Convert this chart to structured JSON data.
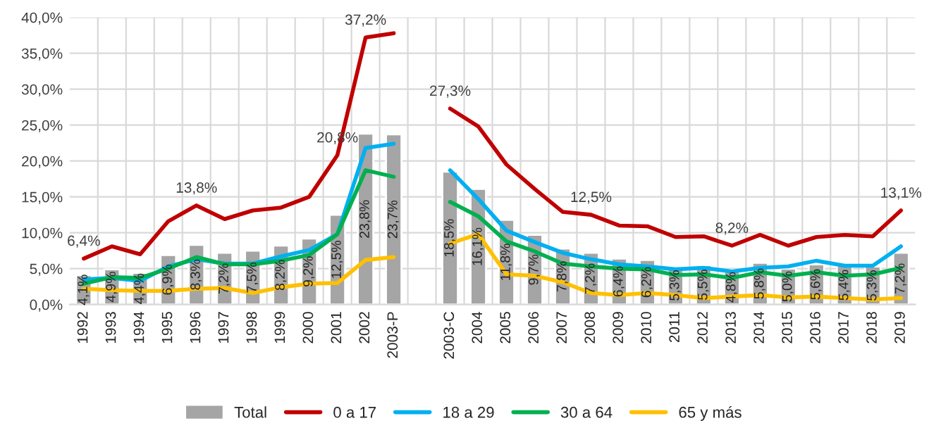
{
  "chart_data": {
    "type": "bar",
    "categories": [
      "1992",
      "1993",
      "1994",
      "1995",
      "1996",
      "1997",
      "1998",
      "1999",
      "2000",
      "2001",
      "2002",
      "2003-P",
      null,
      "2003-C",
      "2004",
      "2005",
      "2006",
      "2007",
      "2008",
      "2009",
      "2010",
      "2011",
      "2012",
      "2013",
      "2014",
      "2015",
      "2016",
      "2017",
      "2018",
      "2019"
    ],
    "series": [
      {
        "name": "Total",
        "color": "#a5a5a5",
        "values": [
          4.1,
          4.9,
          4.4,
          6.9,
          8.3,
          7.2,
          7.5,
          8.2,
          9.2,
          12.5,
          23.8,
          23.7,
          null,
          18.5,
          16.1,
          11.8,
          9.7,
          7.8,
          7.2,
          6.4,
          6.2,
          5.3,
          5.5,
          4.8,
          5.8,
          5.0,
          5.6,
          5.4,
          5.3,
          7.2
        ],
        "value_labels": [
          "4,1%",
          "4,9%",
          "4,4%",
          "6,9%",
          "8,3%",
          "7,2%",
          "7,5%",
          "8,2%",
          "9,2%",
          "12,5%",
          "23,8%",
          "23,7%",
          null,
          "18,5%",
          "16,1%",
          "11,8%",
          "9,7%",
          "7,8%",
          "7,2%",
          "6,4%",
          "6,2%",
          "5,3%",
          "5,5%",
          "4,8%",
          "5,8%",
          "5,0%",
          "5,6%",
          "5,4%",
          "5,3%",
          "7,2%"
        ]
      },
      {
        "name": "0 a 17",
        "type": "line",
        "color": "#c00000",
        "values": [
          6.4,
          8.1,
          7.0,
          11.6,
          13.8,
          11.9,
          13.1,
          13.5,
          15.0,
          20.8,
          37.2,
          37.8,
          null,
          27.3,
          24.8,
          19.5,
          16.1,
          12.9,
          12.5,
          11.0,
          10.9,
          9.4,
          9.5,
          8.2,
          9.7,
          8.2,
          9.4,
          9.7,
          9.5,
          13.1
        ],
        "value_labels": [
          "6,4%",
          null,
          null,
          null,
          "13,8%",
          null,
          null,
          null,
          null,
          "20,8%",
          "37,2%",
          null,
          null,
          "27,3%",
          null,
          null,
          null,
          null,
          "12,5%",
          null,
          null,
          null,
          null,
          "8,2%",
          null,
          null,
          null,
          null,
          null,
          "13,1%"
        ]
      },
      {
        "name": "18 a 29",
        "type": "line",
        "color": "#00b0f0",
        "values": [
          3.5,
          3.7,
          3.3,
          5.3,
          6.3,
          5.7,
          5.7,
          6.7,
          7.6,
          9.8,
          21.8,
          22.4,
          null,
          18.7,
          14.7,
          10.3,
          8.7,
          7.2,
          6.3,
          5.6,
          5.3,
          4.9,
          5.1,
          4.6,
          5.1,
          5.3,
          6.1,
          5.4,
          5.4,
          8.1
        ]
      },
      {
        "name": "30 a 64",
        "type": "line",
        "color": "#00b050",
        "values": [
          2.9,
          3.8,
          3.7,
          5.0,
          6.6,
          5.6,
          5.6,
          6.1,
          6.9,
          9.8,
          18.7,
          17.8,
          null,
          14.3,
          12.3,
          8.8,
          7.4,
          5.7,
          5.3,
          5.0,
          4.9,
          4.1,
          4.2,
          3.7,
          4.5,
          4.0,
          4.5,
          4.0,
          4.2,
          5.1
        ]
      },
      {
        "name": "65 y más",
        "type": "line",
        "color": "#ffc000",
        "values": [
          2.2,
          2.0,
          1.9,
          1.9,
          2.2,
          2.3,
          1.6,
          2.4,
          2.9,
          3.0,
          6.2,
          6.6,
          null,
          8.5,
          9.8,
          4.2,
          4.0,
          3.1,
          1.6,
          1.3,
          1.6,
          1.3,
          0.9,
          1.1,
          1.3,
          1.0,
          1.1,
          0.9,
          0.7,
          0.9
        ]
      }
    ],
    "ylim": [
      0,
      40
    ],
    "yticks": [
      {
        "value": 0,
        "label": "0,0%"
      },
      {
        "value": 5,
        "label": "5,0%"
      },
      {
        "value": 10,
        "label": "10,0%"
      },
      {
        "value": 15,
        "label": "15,0%"
      },
      {
        "value": 20,
        "label": "20,0%"
      },
      {
        "value": 25,
        "label": "25,0%"
      },
      {
        "value": 30,
        "label": "30,0%"
      },
      {
        "value": 35,
        "label": "35,0%"
      },
      {
        "value": 40,
        "label": "40,0%"
      }
    ],
    "grid": true,
    "legend": "bottom",
    "line_style": "solid",
    "marker": "none"
  }
}
